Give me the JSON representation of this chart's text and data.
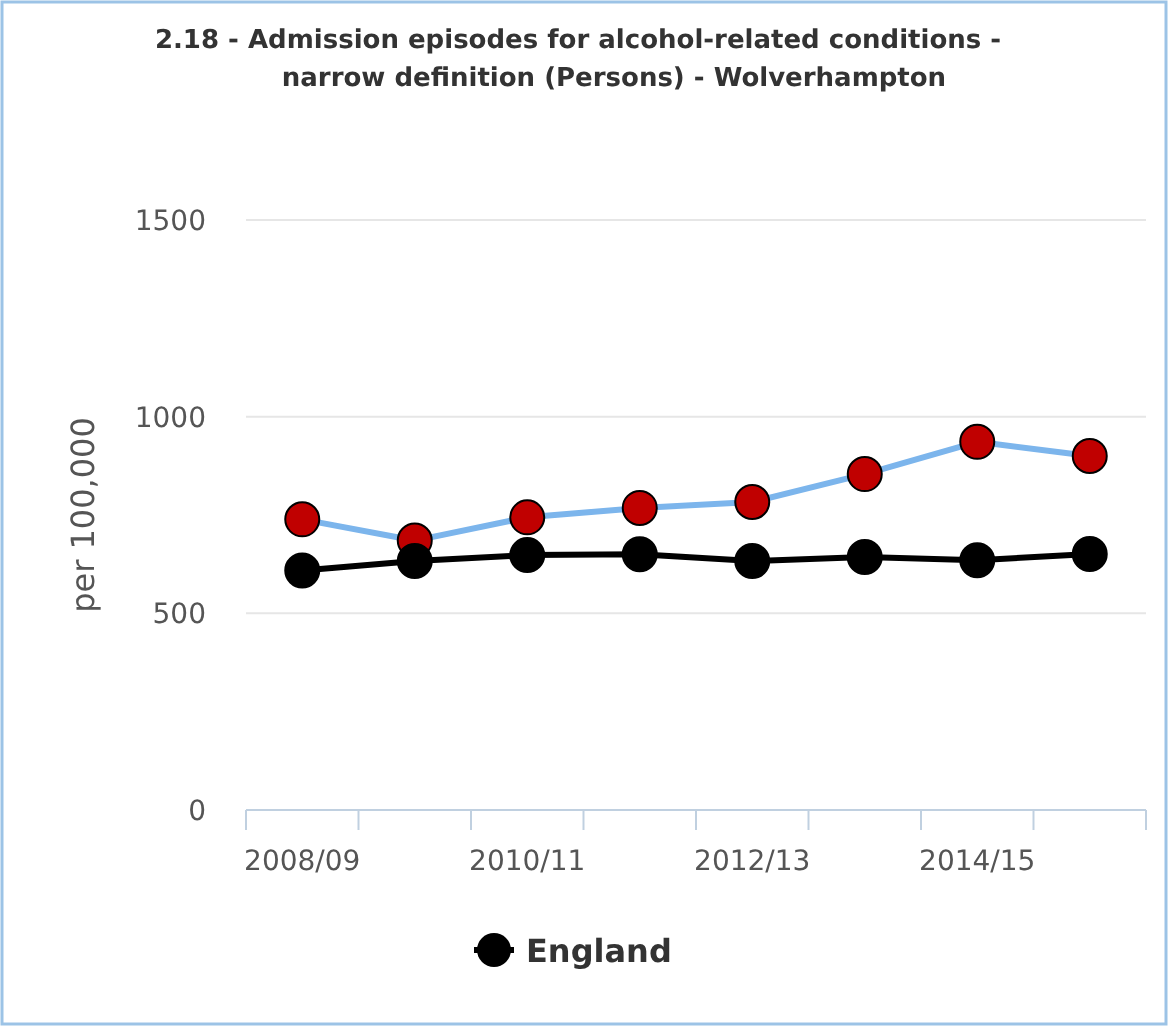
{
  "chart_data": {
    "type": "line",
    "title": "2.18 - Admission episodes for alcohol-related conditions - narrow definition (Persons) - Wolverhampton",
    "ylabel": "per 100,000",
    "categories": [
      "2008/09",
      null,
      "2010/11",
      null,
      "2012/13",
      null,
      "2014/15",
      null
    ],
    "series": [
      {
        "color": "#7cb5ec",
        "colors": [
          "#c00000",
          "#c00000",
          "#c00000",
          "#c00000",
          "#c00000",
          "#c00000",
          "#c00000",
          "#c00000"
        ],
        "values": [
          739,
          685,
          744,
          768,
          783,
          854,
          936,
          900
        ]
      },
      {
        "name": "England",
        "color": "#000000",
        "values": [
          609,
          633,
          648,
          650,
          633,
          643,
          635,
          651
        ]
      }
    ],
    "ylim": [
      0,
      1500
    ],
    "yticks": [
      0,
      500,
      1000,
      1500
    ],
    "grid": "y",
    "legend": "bottom",
    "marker": "circle"
  }
}
